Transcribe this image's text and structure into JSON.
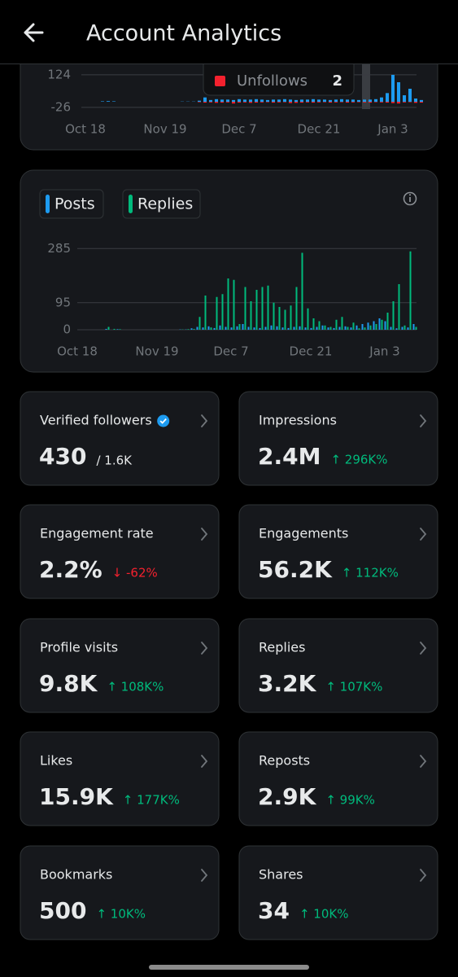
{
  "header": {
    "title": "Account Analytics"
  },
  "followers_chart": {
    "type": "bar",
    "categories": [
      "Oct 18",
      null,
      null,
      null,
      null,
      null,
      null,
      null,
      null,
      null,
      null,
      null,
      null,
      null,
      "Nov 19",
      null,
      null,
      null,
      null,
      null,
      null,
      null,
      null,
      null,
      null,
      null,
      null,
      "Dec 7",
      null,
      null,
      null,
      null,
      null,
      null,
      null,
      null,
      null,
      null,
      null,
      null,
      null,
      "Dec 21",
      null,
      null,
      null,
      null,
      null,
      null,
      null,
      null,
      null,
      null,
      null,
      null,
      "Jan 3",
      null,
      null,
      null,
      null,
      null
    ],
    "series": [
      {
        "color": "#1d9bf0",
        "values": [
          0,
          0,
          0,
          2,
          3,
          2,
          0,
          0,
          0,
          0,
          0,
          0,
          0,
          0,
          0,
          0,
          0,
          1,
          1,
          1,
          5,
          20,
          8,
          12,
          10,
          10,
          8,
          12,
          10,
          10,
          12,
          10,
          8,
          10,
          10,
          12,
          10,
          8,
          10,
          10,
          12,
          10,
          10,
          8,
          10,
          12,
          10,
          10,
          8,
          10,
          10,
          12,
          20,
          40,
          124,
          90,
          30,
          60,
          15,
          8
        ]
      },
      {
        "name": "Unfollows",
        "color": "#f4212e",
        "values": [
          0,
          0,
          0,
          0,
          0,
          0,
          0,
          0,
          0,
          0,
          0,
          0,
          0,
          0,
          0,
          0,
          0,
          0,
          0,
          0,
          -2,
          -4,
          -3,
          -5,
          -4,
          -3,
          -8,
          -4,
          -3,
          -5,
          -4,
          -3,
          -2,
          -4,
          -3,
          -2,
          -6,
          -5,
          -4,
          -3,
          -4,
          -3,
          -2,
          -4,
          -3,
          -2,
          -4,
          -3,
          -2,
          -3,
          -4,
          -2,
          -3,
          -4,
          -6,
          -8,
          -3,
          -2,
          -5,
          -4
        ]
      }
    ],
    "ylim": [
      -30,
      150
    ],
    "yticks": [
      124,
      -26
    ],
    "grid": true,
    "tooltip": {
      "label": "Unfollows",
      "value": 2
    }
  },
  "posts_chart": {
    "type": "bar",
    "categories": [
      "Oct 18",
      null,
      null,
      null,
      null,
      null,
      null,
      null,
      null,
      null,
      null,
      null,
      null,
      null,
      "Nov 19",
      null,
      null,
      null,
      null,
      null,
      null,
      null,
      null,
      null,
      null,
      null,
      null,
      "Dec 7",
      null,
      null,
      null,
      null,
      null,
      null,
      null,
      null,
      null,
      null,
      null,
      null,
      null,
      "Dec 21",
      null,
      null,
      null,
      null,
      null,
      null,
      null,
      null,
      null,
      null,
      null,
      null,
      "Jan 3",
      null,
      null,
      null,
      null,
      null
    ],
    "series": [
      {
        "name": "Posts",
        "color": "#1d9bf0",
        "values": [
          0,
          0,
          0,
          0,
          0,
          3,
          0,
          2,
          0,
          0,
          0,
          0,
          0,
          0,
          0,
          0,
          0,
          0,
          1,
          1,
          5,
          10,
          8,
          12,
          6,
          15,
          10,
          8,
          12,
          20,
          10,
          8,
          6,
          10,
          15,
          12,
          8,
          6,
          10,
          12,
          8,
          6,
          10,
          15,
          8,
          6,
          10,
          12,
          8,
          15,
          20,
          25,
          30,
          40,
          30,
          10,
          5,
          10,
          8,
          20
        ]
      },
      {
        "name": "Replies",
        "color": "#00ba7c",
        "values": [
          0,
          0,
          0,
          0,
          0,
          10,
          3,
          2,
          0,
          0,
          0,
          0,
          0,
          0,
          0,
          0,
          0,
          0,
          1,
          2,
          3,
          45,
          120,
          8,
          115,
          125,
          180,
          175,
          20,
          150,
          100,
          140,
          150,
          155,
          95,
          80,
          70,
          85,
          150,
          270,
          75,
          40,
          30,
          15,
          10,
          35,
          45,
          10,
          25,
          5,
          8,
          15,
          20,
          35,
          60,
          100,
          160,
          15,
          275,
          10
        ]
      }
    ],
    "ylim": [
      0,
      300
    ],
    "yticks": [
      0,
      95,
      285
    ],
    "grid": true
  },
  "cards": [
    {
      "title": "Verified followers",
      "value": "430",
      "sub": "/ 1.6K"
    },
    {
      "title": "Impressions",
      "value": "2.4M",
      "change": "↑ 296K%"
    },
    {
      "title": "Engagement rate",
      "value": "2.2%",
      "change": "↓ -62%"
    },
    {
      "title": "Engagements",
      "value": "56.2K",
      "change": "↑ 112K%"
    },
    {
      "title": "Profile visits",
      "value": "9.8K",
      "change": "↑ 108K%"
    },
    {
      "title": "Replies",
      "value": "3.2K",
      "change": "↑ 107K%"
    },
    {
      "title": "Likes",
      "value": "15.9K",
      "change": "↑ 177K%"
    },
    {
      "title": "Reposts",
      "value": "2.9K",
      "change": "↑ 99K%"
    },
    {
      "title": "Bookmarks",
      "value": "500",
      "change": "↑ 10K%"
    },
    {
      "title": "Shares",
      "value": "34",
      "change": "↑ 10K%"
    }
  ]
}
